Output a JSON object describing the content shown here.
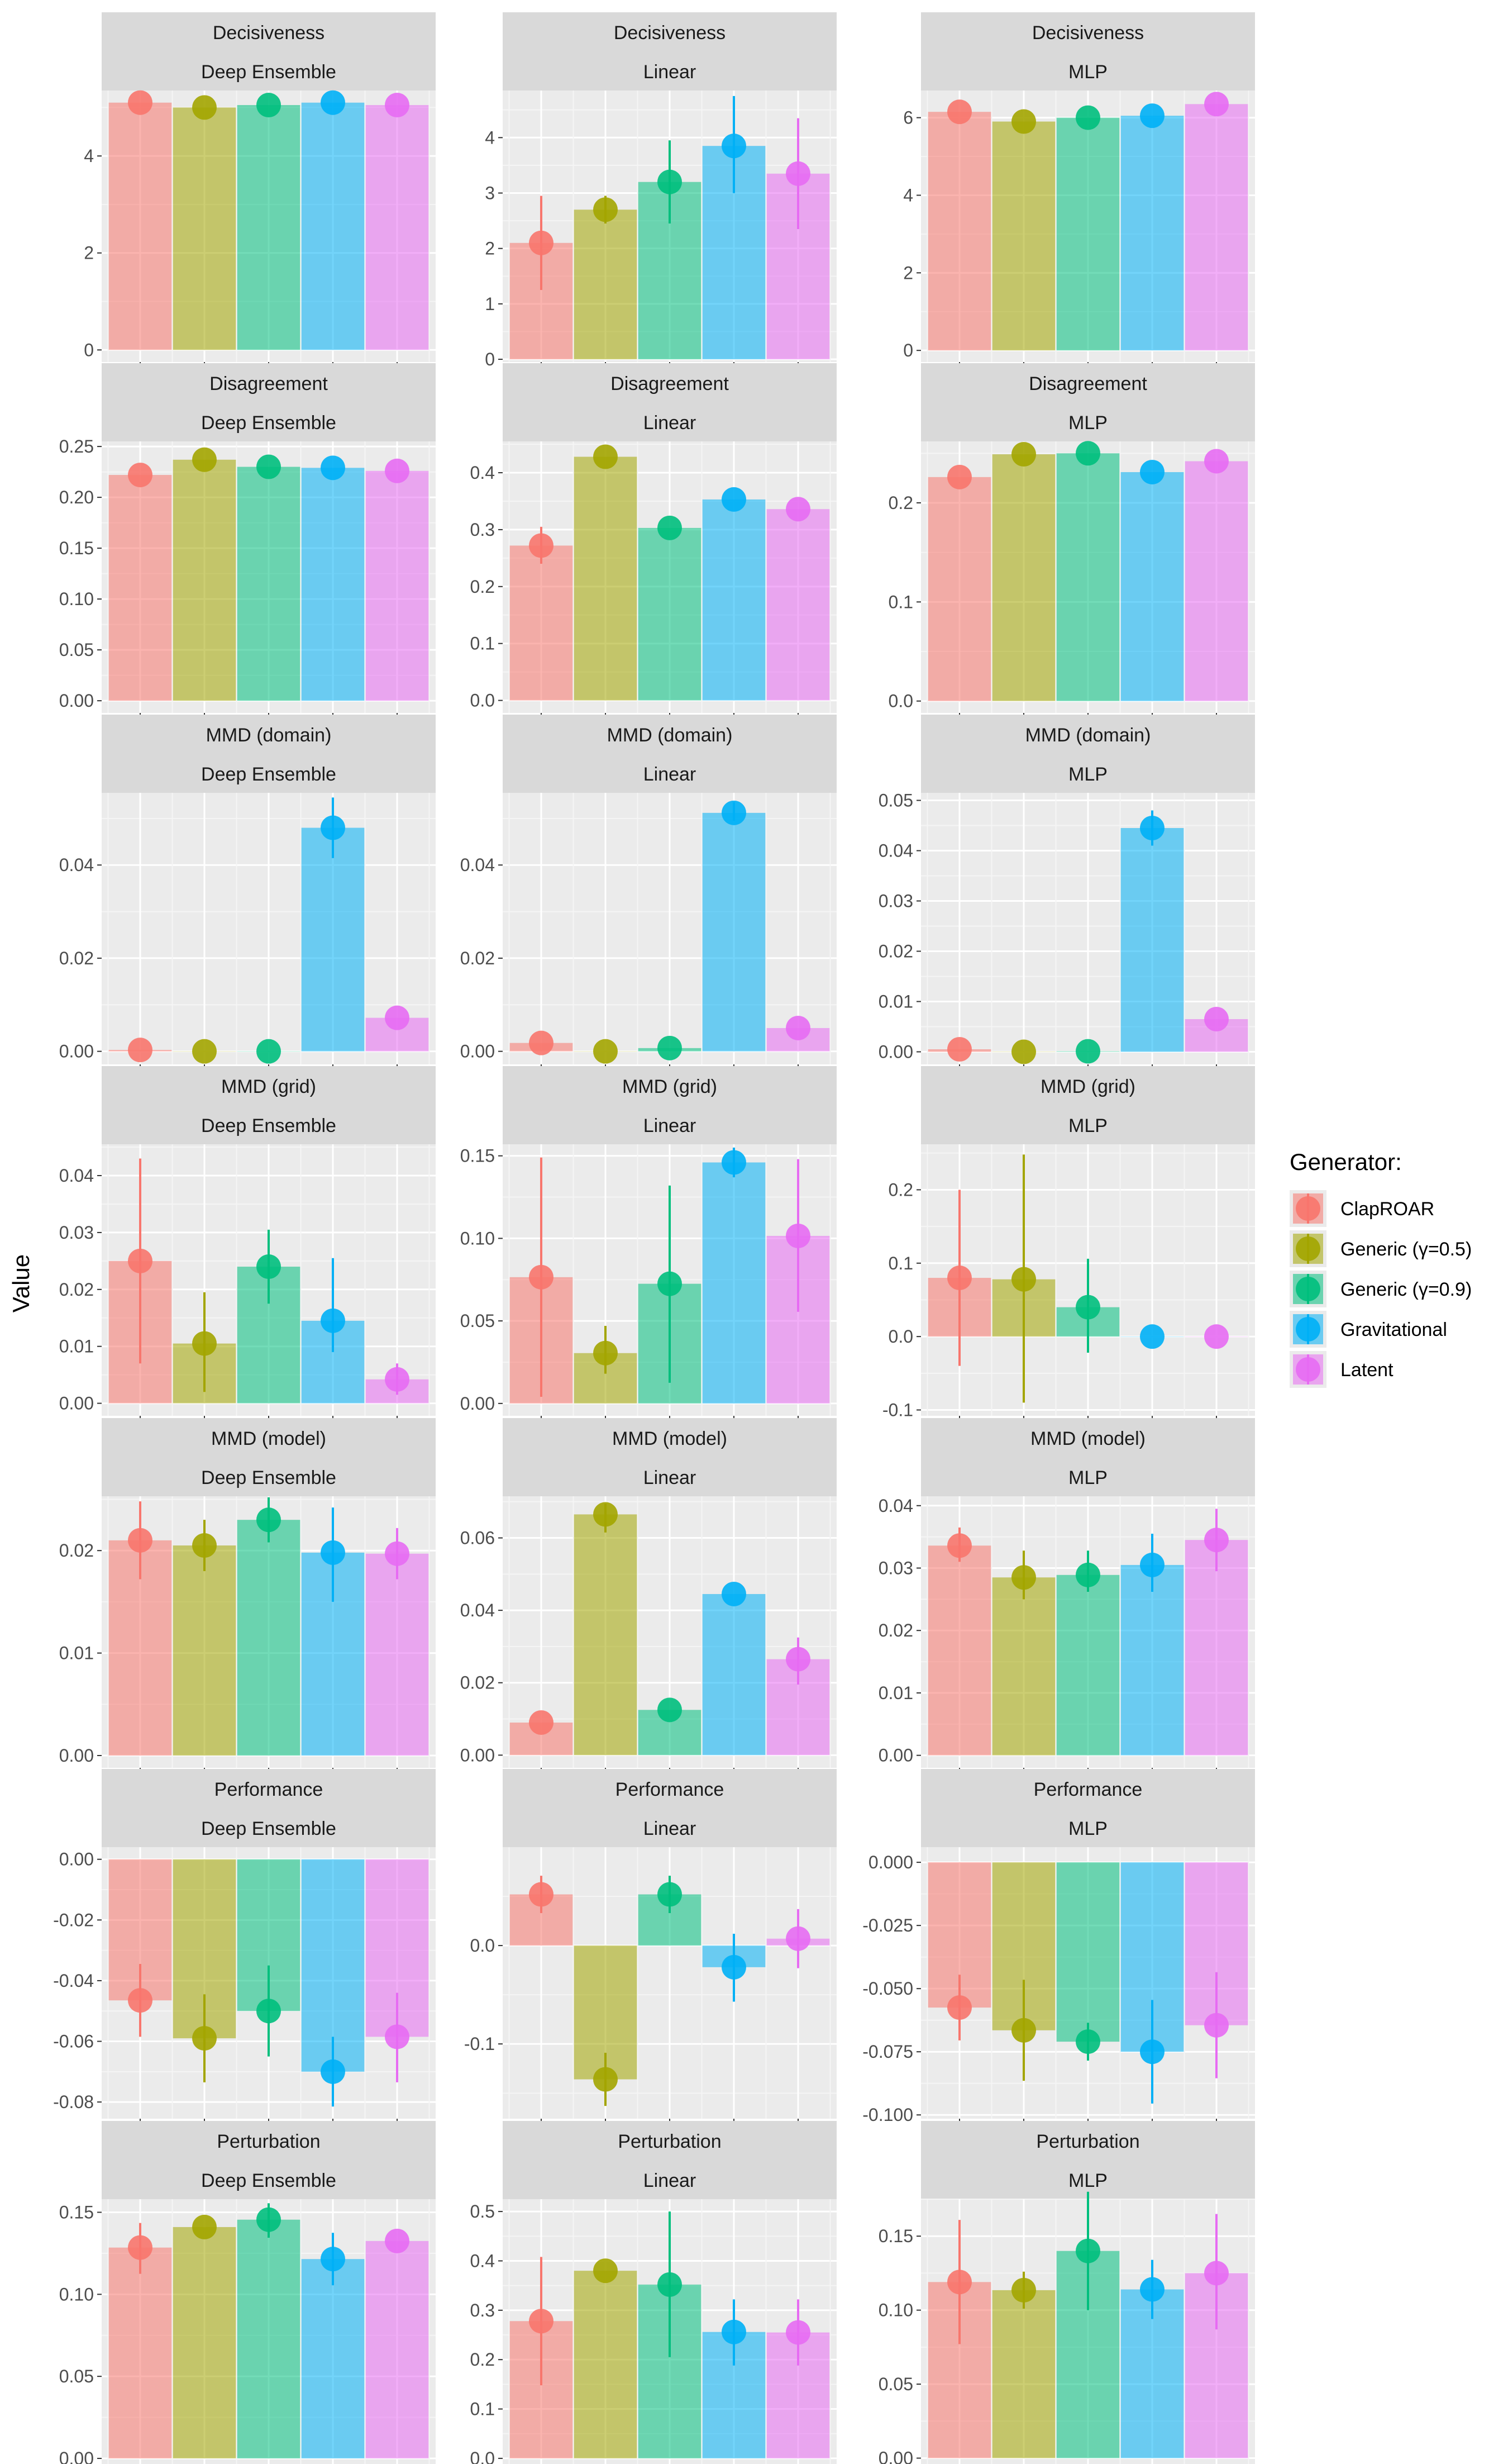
{
  "chart_data": {
    "type": "bar",
    "ylabel": "Value",
    "legend": {
      "title": "Generator:",
      "position": "right",
      "entries": [
        "ClapROAR",
        "Generic (γ=0.5)",
        "Generic (γ=0.9)",
        "Gravitational",
        "Latent"
      ]
    },
    "series_colors": [
      "#F8766D",
      "#A3A500",
      "#00BF7D",
      "#00B0F6",
      "#E76BF3"
    ],
    "columns": [
      "Deep Ensemble",
      "Linear",
      "MLP"
    ],
    "rows": [
      "Decisiveness",
      "Disagreement",
      "MMD (domain)",
      "MMD (grid)",
      "MMD (model)",
      "Performance",
      "Perturbation"
    ],
    "grid": true,
    "panels": [
      {
        "metric": "Decisiveness",
        "model": "Deep Ensemble",
        "ylim": [
          -0.25,
          5.35
        ],
        "ticks": [
          0,
          2,
          4
        ],
        "tick_labels": [
          "0",
          "2",
          "4"
        ],
        "values": [
          5.1,
          5.0,
          5.05,
          5.1,
          5.05
        ],
        "err_low": [
          5.1,
          5.0,
          5.05,
          5.1,
          5.05
        ],
        "err_high": [
          5.1,
          5.0,
          5.05,
          5.1,
          5.05
        ]
      },
      {
        "metric": "Decisiveness",
        "model": "Linear",
        "ylim": [
          -0.05,
          4.85
        ],
        "ticks": [
          0,
          1,
          2,
          3,
          4
        ],
        "tick_labels": [
          "0",
          "1",
          "2",
          "3",
          "4"
        ],
        "values": [
          2.1,
          2.7,
          3.2,
          3.85,
          3.35
        ],
        "err_low": [
          1.25,
          2.45,
          2.45,
          3.0,
          2.35
        ],
        "err_high": [
          2.95,
          2.95,
          3.95,
          4.75,
          4.35
        ]
      },
      {
        "metric": "Decisiveness",
        "model": "MLP",
        "ylim": [
          -0.3,
          6.7
        ],
        "ticks": [
          0,
          2,
          4,
          6
        ],
        "tick_labels": [
          "0",
          "2",
          "4",
          "6"
        ],
        "values": [
          6.15,
          5.9,
          6.0,
          6.05,
          6.35
        ],
        "err_low": [
          6.15,
          5.9,
          6.0,
          6.05,
          6.35
        ],
        "err_high": [
          6.15,
          5.9,
          6.0,
          6.05,
          6.35
        ]
      },
      {
        "metric": "Disagreement",
        "model": "Deep Ensemble",
        "ylim": [
          -0.012,
          0.255
        ],
        "ticks": [
          0,
          0.05,
          0.1,
          0.15,
          0.2,
          0.25
        ],
        "tick_labels": [
          "0.00",
          "0.05",
          "0.10",
          "0.15",
          "0.20",
          "0.25"
        ],
        "values": [
          0.222,
          0.237,
          0.23,
          0.229,
          0.226
        ],
        "err_low": [
          0.222,
          0.237,
          0.23,
          0.229,
          0.226
        ],
        "err_high": [
          0.222,
          0.237,
          0.23,
          0.229,
          0.226
        ]
      },
      {
        "metric": "Disagreement",
        "model": "Linear",
        "ylim": [
          -0.022,
          0.455
        ],
        "ticks": [
          0,
          0.1,
          0.2,
          0.3,
          0.4
        ],
        "tick_labels": [
          "0.0",
          "0.1",
          "0.2",
          "0.3",
          "0.4"
        ],
        "values": [
          0.272,
          0.428,
          0.303,
          0.353,
          0.336
        ],
        "err_low": [
          0.24,
          0.428,
          0.303,
          0.353,
          0.336
        ],
        "err_high": [
          0.305,
          0.428,
          0.303,
          0.353,
          0.336
        ]
      },
      {
        "metric": "Disagreement",
        "model": "MLP",
        "ylim": [
          -0.012,
          0.262
        ],
        "ticks": [
          0,
          0.1,
          0.2
        ],
        "tick_labels": [
          "0.0",
          "0.1",
          "0.2"
        ],
        "values": [
          0.226,
          0.249,
          0.25,
          0.231,
          0.242
        ],
        "err_low": [
          0.226,
          0.249,
          0.25,
          0.231,
          0.242
        ],
        "err_high": [
          0.226,
          0.249,
          0.25,
          0.231,
          0.242
        ]
      },
      {
        "metric": "MMD (domain)",
        "model": "Deep Ensemble",
        "ylim": [
          -0.0028,
          0.0555
        ],
        "ticks": [
          0,
          0.02,
          0.04
        ],
        "tick_labels": [
          "0.00",
          "0.02",
          "0.04"
        ],
        "values": [
          0.0003,
          0.0,
          0.0,
          0.048,
          0.0072
        ],
        "err_low": [
          0.0003,
          0.0,
          0.0,
          0.0415,
          0.0072
        ],
        "err_high": [
          0.0003,
          0.0,
          0.0,
          0.0545,
          0.0072
        ]
      },
      {
        "metric": "MMD (domain)",
        "model": "Linear",
        "ylim": [
          -0.0028,
          0.0555
        ],
        "ticks": [
          0,
          0.02,
          0.04
        ],
        "tick_labels": [
          "0.00",
          "0.02",
          "0.04"
        ],
        "values": [
          0.0018,
          0.0,
          0.0007,
          0.0512,
          0.005
        ],
        "err_low": [
          0.0018,
          0.0,
          0.0007,
          0.0495,
          0.005
        ],
        "err_high": [
          0.0018,
          0.0,
          0.0007,
          0.0535,
          0.005
        ]
      },
      {
        "metric": "MMD (domain)",
        "model": "MLP",
        "ylim": [
          -0.0025,
          0.0515
        ],
        "ticks": [
          0,
          0.01,
          0.02,
          0.03,
          0.04,
          0.05
        ],
        "tick_labels": [
          "0.00",
          "0.01",
          "0.02",
          "0.03",
          "0.04",
          "0.05"
        ],
        "values": [
          0.0005,
          0.0,
          0.0001,
          0.0445,
          0.0065
        ],
        "err_low": [
          0.0005,
          0.0,
          0.0001,
          0.041,
          0.0065
        ],
        "err_high": [
          0.0005,
          0.0,
          0.0001,
          0.048,
          0.0065
        ]
      },
      {
        "metric": "MMD (grid)",
        "model": "Deep Ensemble",
        "ylim": [
          -0.0022,
          0.0455
        ],
        "ticks": [
          0,
          0.01,
          0.02,
          0.03,
          0.04
        ],
        "tick_labels": [
          "0.00",
          "0.01",
          "0.02",
          "0.03",
          "0.04"
        ],
        "values": [
          0.025,
          0.0105,
          0.024,
          0.0145,
          0.0042
        ],
        "err_low": [
          0.007,
          0.002,
          0.0175,
          0.009,
          0.0015
        ],
        "err_high": [
          0.043,
          0.0195,
          0.0305,
          0.0255,
          0.007
        ]
      },
      {
        "metric": "MMD (grid)",
        "model": "Linear",
        "ylim": [
          -0.0075,
          0.157
        ],
        "ticks": [
          0,
          0.05,
          0.1,
          0.15
        ],
        "tick_labels": [
          "0.00",
          "0.05",
          "0.10",
          "0.15"
        ],
        "values": [
          0.0765,
          0.0305,
          0.0725,
          0.146,
          0.1015
        ],
        "err_low": [
          0.004,
          0.018,
          0.0125,
          0.137,
          0.0555
        ],
        "err_high": [
          0.149,
          0.047,
          0.132,
          0.155,
          0.148
        ]
      },
      {
        "metric": "MMD (grid)",
        "model": "MLP",
        "ylim": [
          -0.108,
          0.262
        ],
        "ticks": [
          -0.1,
          0,
          0.1,
          0.2
        ],
        "tick_labels": [
          "-0.1",
          "0.0",
          "0.1",
          "0.2"
        ],
        "values": [
          0.08,
          0.078,
          0.04,
          0.0,
          0.0
        ],
        "err_low": [
          -0.04,
          -0.09,
          -0.022,
          0.0,
          0.0
        ],
        "err_high": [
          0.2,
          0.248,
          0.106,
          0.0,
          0.0
        ]
      },
      {
        "metric": "MMD (model)",
        "model": "Deep Ensemble",
        "ylim": [
          -0.0012,
          0.0253
        ],
        "ticks": [
          0,
          0.01,
          0.02
        ],
        "tick_labels": [
          "0.00",
          "0.01",
          "0.02"
        ],
        "values": [
          0.021,
          0.0205,
          0.023,
          0.0198,
          0.0197
        ],
        "err_low": [
          0.0172,
          0.018,
          0.0208,
          0.015,
          0.0172
        ],
        "err_high": [
          0.0248,
          0.023,
          0.0252,
          0.0242,
          0.0222
        ]
      },
      {
        "metric": "MMD (model)",
        "model": "Linear",
        "ylim": [
          -0.0035,
          0.0715
        ],
        "ticks": [
          0,
          0.02,
          0.04,
          0.06
        ],
        "tick_labels": [
          "0.00",
          "0.02",
          "0.04",
          "0.06"
        ],
        "values": [
          0.009,
          0.0665,
          0.0125,
          0.0445,
          0.0265
        ],
        "err_low": [
          0.009,
          0.0615,
          0.0125,
          0.0445,
          0.0195
        ],
        "err_high": [
          0.009,
          0.0695,
          0.0125,
          0.0445,
          0.0325
        ]
      },
      {
        "metric": "MMD (model)",
        "model": "MLP",
        "ylim": [
          -0.002,
          0.0415
        ],
        "ticks": [
          0,
          0.01,
          0.02,
          0.03,
          0.04
        ],
        "tick_labels": [
          "0.00",
          "0.01",
          "0.02",
          "0.03",
          "0.04"
        ],
        "values": [
          0.0336,
          0.0285,
          0.0289,
          0.0305,
          0.0345
        ],
        "err_low": [
          0.031,
          0.025,
          0.0262,
          0.0262,
          0.0295
        ],
        "err_high": [
          0.0365,
          0.0328,
          0.0328,
          0.0355,
          0.0395
        ]
      },
      {
        "metric": "Performance",
        "model": "Deep Ensemble",
        "ylim": [
          -0.0855,
          0.004
        ],
        "ticks": [
          0,
          -0.02,
          -0.04,
          -0.06,
          -0.08
        ],
        "tick_labels": [
          "0.00",
          "-0.02",
          "-0.04",
          "-0.06",
          "-0.08"
        ],
        "values": [
          -0.0465,
          -0.059,
          -0.05,
          -0.07,
          -0.0585
        ],
        "err_low": [
          -0.0585,
          -0.0735,
          -0.065,
          -0.0815,
          -0.0735
        ],
        "err_high": [
          -0.0345,
          -0.0445,
          -0.035,
          -0.0585,
          -0.044
        ]
      },
      {
        "metric": "Performance",
        "model": "Linear",
        "ylim": [
          -0.176,
          0.1
        ],
        "ticks": [
          0,
          -0.1
        ],
        "tick_labels": [
          "0.0",
          "-0.1"
        ],
        "values": [
          0.052,
          -0.136,
          0.052,
          -0.022,
          0.007
        ],
        "err_low": [
          0.033,
          -0.163,
          0.033,
          -0.057,
          -0.023
        ],
        "err_high": [
          0.071,
          -0.109,
          0.071,
          0.012,
          0.037
        ]
      },
      {
        "metric": "Performance",
        "model": "MLP",
        "ylim": [
          -0.1015,
          0.006
        ],
        "ticks": [
          0,
          -0.025,
          -0.05,
          -0.075,
          -0.1
        ],
        "tick_labels": [
          "0.000",
          "-0.025",
          "-0.050",
          "-0.075",
          "-0.100"
        ],
        "values": [
          -0.0575,
          -0.0665,
          -0.071,
          -0.075,
          -0.0645
        ],
        "err_low": [
          -0.0705,
          -0.0865,
          -0.0785,
          -0.0955,
          -0.0855
        ],
        "err_high": [
          -0.0445,
          -0.0465,
          -0.0635,
          -0.0545,
          -0.0435
        ]
      },
      {
        "metric": "Perturbation",
        "model": "Deep Ensemble",
        "ylim": [
          -0.0075,
          0.158
        ],
        "ticks": [
          0,
          0.05,
          0.1,
          0.15
        ],
        "tick_labels": [
          "0.00",
          "0.05",
          "0.10",
          "0.15"
        ],
        "values": [
          0.1285,
          0.141,
          0.1455,
          0.1215,
          0.1325
        ],
        "err_low": [
          0.1125,
          0.141,
          0.1345,
          0.1055,
          0.1325
        ],
        "err_high": [
          0.1435,
          0.141,
          0.1555,
          0.1375,
          0.1325
        ]
      },
      {
        "metric": "Perturbation",
        "model": "Linear",
        "ylim": [
          -0.025,
          0.525
        ],
        "ticks": [
          0,
          0.1,
          0.2,
          0.3,
          0.4,
          0.5
        ],
        "tick_labels": [
          "0.0",
          "0.1",
          "0.2",
          "0.3",
          "0.4",
          "0.5"
        ],
        "values": [
          0.278,
          0.38,
          0.352,
          0.256,
          0.255
        ],
        "err_low": [
          0.148,
          0.38,
          0.205,
          0.188,
          0.188
        ],
        "err_high": [
          0.408,
          0.38,
          0.5,
          0.322,
          0.322
        ]
      },
      {
        "metric": "Perturbation",
        "model": "MLP",
        "ylim": [
          -0.0085,
          0.175
        ],
        "ticks": [
          0,
          0.05,
          0.1,
          0.15
        ],
        "tick_labels": [
          "0.00",
          "0.05",
          "0.10",
          "0.15"
        ],
        "values": [
          0.119,
          0.1135,
          0.14,
          0.114,
          0.125
        ],
        "err_low": [
          0.077,
          0.101,
          0.1,
          0.094,
          0.087
        ],
        "err_high": [
          0.161,
          0.126,
          0.18,
          0.134,
          0.165
        ]
      }
    ]
  }
}
